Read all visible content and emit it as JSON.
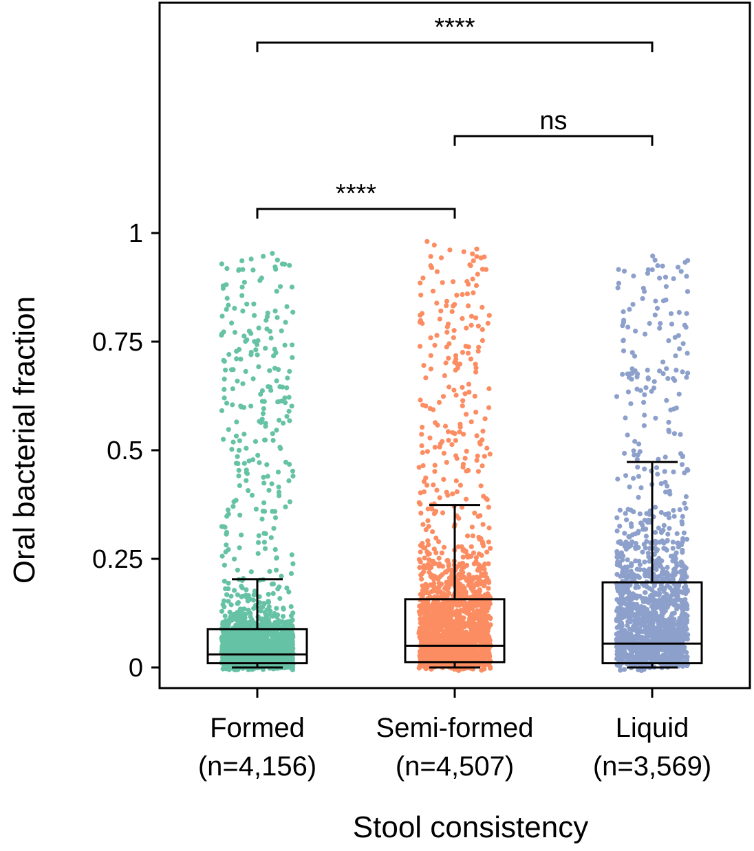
{
  "chart_data": {
    "type": "box_strip",
    "xlabel": "Stool consistency",
    "ylabel": "Oral bacterial fraction",
    "ylim": [
      -0.05,
      1.58
    ],
    "yticks": [
      {
        "value": 0,
        "label": "0"
      },
      {
        "value": 0.25,
        "label": "0.25"
      },
      {
        "value": 0.5,
        "label": "0.5"
      },
      {
        "value": 0.75,
        "label": "0.75"
      },
      {
        "value": 1,
        "label": "1"
      }
    ],
    "categories": [
      {
        "name": "Formed",
        "n_label": "(n=4,156)",
        "n": 4156,
        "color": "#66c2a5"
      },
      {
        "name": "Semi-formed",
        "n_label": "(n=4,507)",
        "n": 4507,
        "color": "#fc8d62"
      },
      {
        "name": "Liquid",
        "n_label": "(n=3,569)",
        "n": 3569,
        "color": "#8da0cb"
      }
    ],
    "boxes": [
      {
        "category": "Formed",
        "whisker_low": 0.0,
        "q1": 0.01,
        "median": 0.03,
        "q3": 0.088,
        "whisker_high": 0.203
      },
      {
        "category": "Semi-formed",
        "whisker_low": 0.0,
        "q1": 0.012,
        "median": 0.05,
        "q3": 0.157,
        "whisker_high": 0.374
      },
      {
        "category": "Liquid",
        "whisker_low": 0.0,
        "q1": 0.01,
        "median": 0.055,
        "q3": 0.196,
        "whisker_high": 0.473
      }
    ],
    "significance": [
      {
        "from": "Formed",
        "to": "Semi-formed",
        "label": "****"
      },
      {
        "from": "Semi-formed",
        "to": "Liquid",
        "label": "ns"
      },
      {
        "from": "Formed",
        "to": "Liquid",
        "label": "****"
      }
    ],
    "grid": false,
    "legend": "none"
  }
}
